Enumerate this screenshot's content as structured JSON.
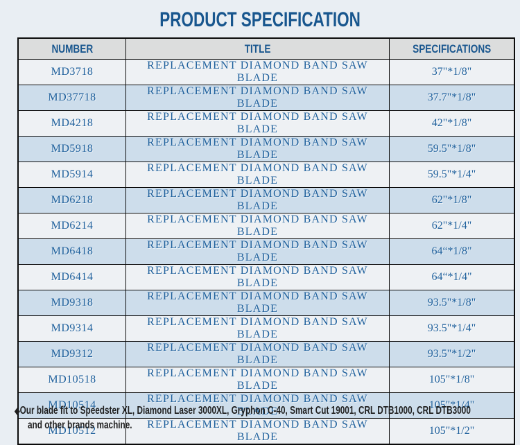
{
  "page": {
    "title": "PRODUCT SPECIFICATION"
  },
  "colors": {
    "page_background": "#e9eef3",
    "title_text": "#18568e",
    "header_background": "#dcdddd",
    "header_text": "#1a578f",
    "row_white": "#eef1f4",
    "row_blue": "#cdddeb",
    "cell_text": "#1f609c",
    "border": "#0b0b0b",
    "footnote_text": "#1f1f1f"
  },
  "table": {
    "headers": [
      "NUMBER",
      "TITLE",
      "SPECIFICATIONS"
    ],
    "rows": [
      {
        "number": "MD3718",
        "title": "REPLACEMENT DIAMOND BAND SAW BLADE",
        "spec": "37\"*1/8\""
      },
      {
        "number": "MD37718",
        "title": "REPLACEMENT DIAMOND BAND SAW BLADE",
        "spec": "37.7\"*1/8\""
      },
      {
        "number": "MD4218",
        "title": "REPLACEMENT DIAMOND BAND SAW BLADE",
        "spec": "42\"*1/8\""
      },
      {
        "number": "MD5918",
        "title": "REPLACEMENT DIAMOND BAND SAW BLADE",
        "spec": "59.5\"*1/8\""
      },
      {
        "number": "MD5914",
        "title": "REPLACEMENT DIAMOND BAND SAW BLADE",
        "spec": "59.5\"*1/4\""
      },
      {
        "number": "MD6218",
        "title": "REPLACEMENT DIAMOND BAND SAW BLADE",
        "spec": "62\"*1/8\""
      },
      {
        "number": "MD6214",
        "title": "REPLACEMENT DIAMOND BAND SAW BLADE",
        "spec": "62\"*1/4\""
      },
      {
        "number": "MD6418",
        "title": "REPLACEMENT DIAMOND BAND SAW BLADE",
        "spec": "64“*1/8\""
      },
      {
        "number": "MD6414",
        "title": "REPLACEMENT DIAMOND BAND SAW BLADE",
        "spec": "64“*1/4\""
      },
      {
        "number": "MD9318",
        "title": "REPLACEMENT DIAMOND BAND SAW BLADE",
        "spec": "93.5\"*1/8\""
      },
      {
        "number": "MD9314",
        "title": "REPLACEMENT DIAMOND BAND SAW BLADE",
        "spec": "93.5\"*1/4\""
      },
      {
        "number": "MD9312",
        "title": "REPLACEMENT DIAMOND BAND SAW BLADE",
        "spec": "93.5\"*1/2\""
      },
      {
        "number": "MD10518",
        "title": "REPLACEMENT DIAMOND BAND SAW BLADE",
        "spec": "105\"*1/8\""
      },
      {
        "number": "MD10514",
        "title": "REPLACEMENT DIAMOND BAND SAW BLADE",
        "spec": "105\"*1/4\""
      },
      {
        "number": "MD10512",
        "title": "REPLACEMENT DIAMOND BAND SAW BLADE",
        "spec": "105\"*1/2\""
      }
    ]
  },
  "footnote": {
    "bullet": "◆",
    "line1": "Our blade fit to Speedster XL, Diamond Laser 3000XL, Gryphon C-40, Smart Cut 19001, CRL DTB1000, CRL DTB3000",
    "line2": "and other brands machine."
  }
}
